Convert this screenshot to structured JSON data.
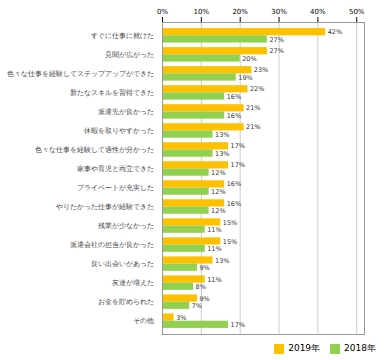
{
  "chart_data": {
    "type": "bar",
    "orientation": "horizontal",
    "categories": [
      "その他",
      "お金を貯められた",
      "友達が増えた",
      "良い出会いがあった",
      "派遣会社の担当が良かった",
      "残業が少なかった",
      "やりたかった仕事が経験できた",
      "プライベートが充実した",
      "家事や育児と両立できた",
      "色々な仕事を経験して適性が分かった",
      "休暇を取りやすかった",
      "派遣先が良かった",
      "新たなスキルを習得できた",
      "色々な仕事を経験してステップアップができた",
      "見聞が広がった",
      "すぐに仕事に就けた"
    ],
    "series": [
      {
        "name": "2019年",
        "color": "#FFC000",
        "values": [
          3,
          9,
          11,
          13,
          15,
          15,
          16,
          16,
          17,
          17,
          21,
          21,
          22,
          23,
          27,
          42
        ],
        "value_labels": [
          "3%",
          "9%",
          "11%",
          "13%",
          "15%",
          "15%",
          "16%",
          "16%",
          "17%",
          "17%",
          "21%",
          "21%",
          "22%",
          "23%",
          "27%",
          "42%"
        ]
      },
      {
        "name": "2018年",
        "color": "#92D050",
        "values": [
          17,
          7,
          8,
          9,
          11,
          11,
          12,
          12,
          12,
          13,
          13,
          16,
          16,
          19,
          20,
          27
        ],
        "value_labels": [
          "17%",
          "7%",
          "8%",
          "9%",
          "11%",
          "11%",
          "12%",
          "12%",
          "12%",
          "13%",
          "13%",
          "16%",
          "16%",
          "19%",
          "20%",
          "27%"
        ]
      }
    ],
    "xlim": [
      0,
      52
    ],
    "xticks": [
      {
        "value": 0,
        "label": "0%"
      },
      {
        "value": 10,
        "label": "10%"
      },
      {
        "value": 20,
        "label": "20%"
      },
      {
        "value": 30,
        "label": "30%"
      },
      {
        "value": 40,
        "label": "40%"
      },
      {
        "value": 50,
        "label": "50%"
      }
    ],
    "grid": true,
    "legend": "lower right",
    "data_labels": true
  }
}
